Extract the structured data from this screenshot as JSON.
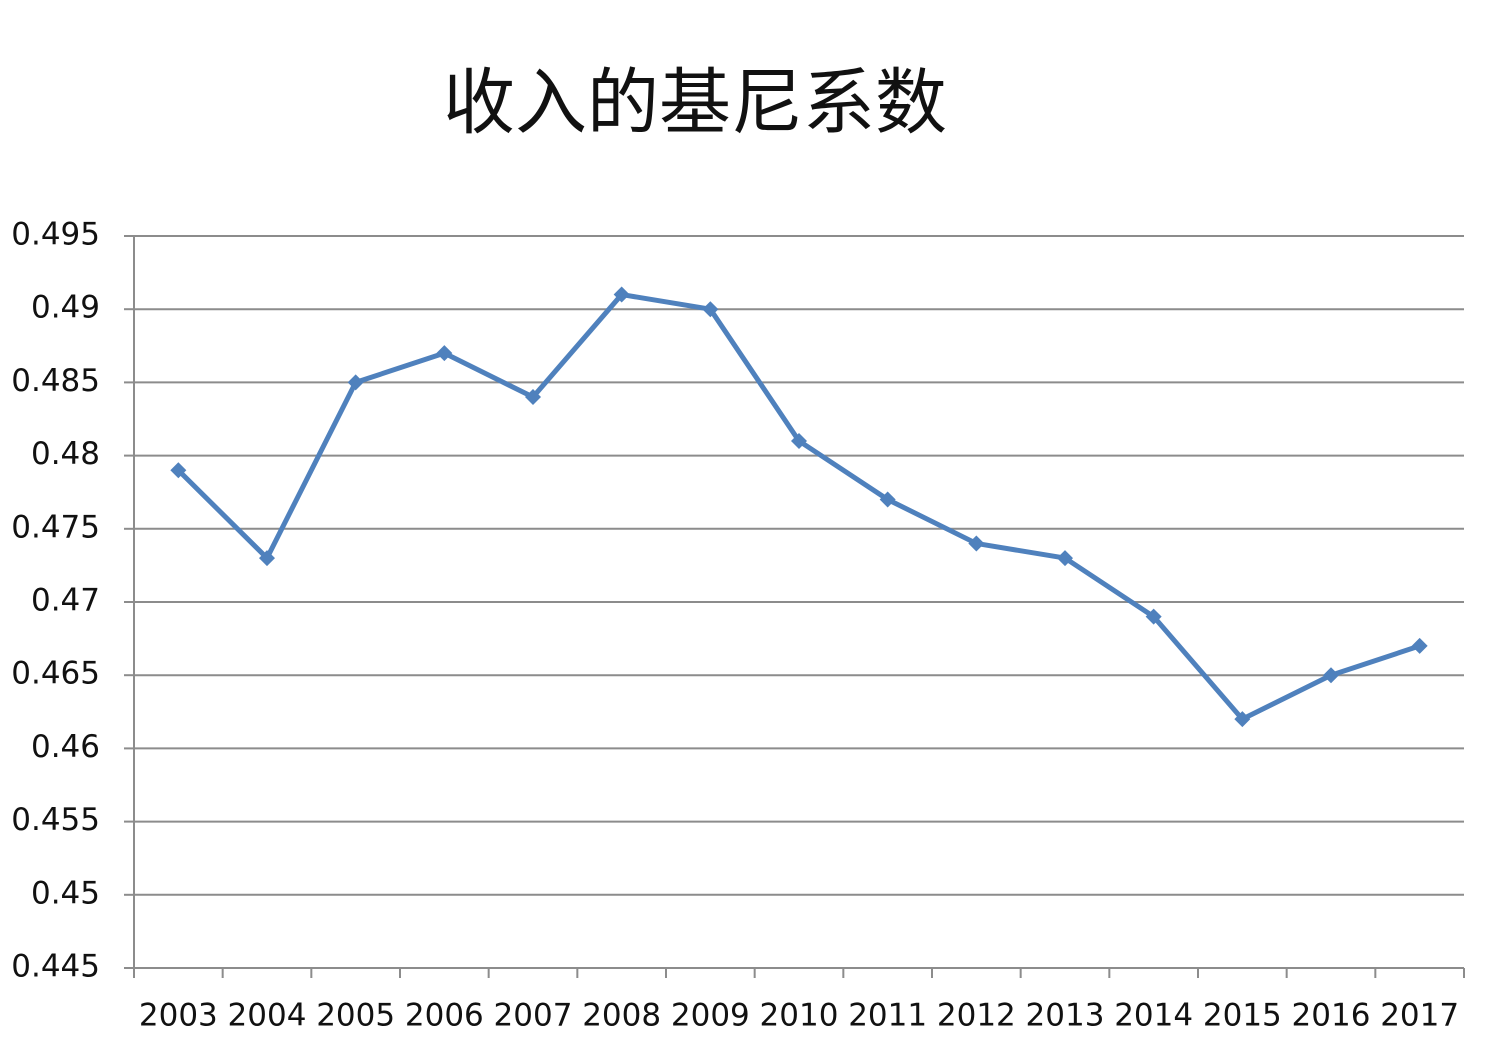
{
  "chart_data": {
    "type": "line",
    "title": "收入的基尼系数",
    "categories": [
      "2003",
      "2004",
      "2005",
      "2006",
      "2007",
      "2008",
      "2009",
      "2010",
      "2011",
      "2012",
      "2013",
      "2014",
      "2015",
      "2016",
      "2017"
    ],
    "values": [
      0.479,
      0.473,
      0.485,
      0.487,
      0.484,
      0.491,
      0.49,
      0.481,
      0.477,
      0.474,
      0.473,
      0.469,
      0.462,
      0.465,
      0.467
    ],
    "color": "#4f81bd",
    "ylim": [
      0.445,
      0.495
    ],
    "yticks": [
      0.445,
      0.45,
      0.455,
      0.46,
      0.465,
      0.47,
      0.475,
      0.48,
      0.485,
      0.49,
      0.495
    ],
    "grid": true
  }
}
